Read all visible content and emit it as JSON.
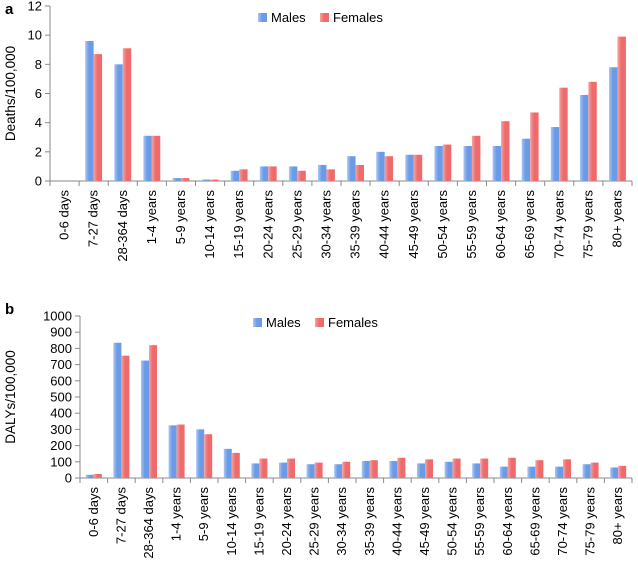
{
  "colors": {
    "males": "#6b9be6",
    "females": "#ef6b6b",
    "axis": "#8a8a8a"
  },
  "chart_data": [
    {
      "type": "bar",
      "panel_label": "a",
      "ylabel": "Deaths/100,000",
      "ylim": [
        0,
        12
      ],
      "yticks": [
        0,
        2,
        4,
        6,
        8,
        10,
        12
      ],
      "legend_position": "top-center",
      "categories": [
        "0-6 days",
        "7-27 days",
        "28-364 days",
        "1-4 years",
        "5-9 years",
        "10-14 years",
        "15-19 years",
        "20-24 years",
        "25-29 years",
        "30-34 years",
        "35-39 years",
        "40-44 years",
        "45-49 years",
        "50-54 years",
        "55-59 years",
        "60-64 years",
        "65-69 years",
        "70-74 years",
        "75-79 years",
        "80+ years"
      ],
      "series": [
        {
          "name": "Males",
          "values": [
            0,
            9.6,
            8.0,
            3.1,
            0.2,
            0.1,
            0.7,
            1.0,
            1.0,
            1.1,
            1.7,
            2.0,
            1.8,
            2.4,
            2.4,
            2.4,
            2.9,
            3.7,
            5.9,
            7.8
          ]
        },
        {
          "name": "Females",
          "values": [
            0,
            8.7,
            9.1,
            3.1,
            0.2,
            0.1,
            0.8,
            1.0,
            0.7,
            0.8,
            1.1,
            1.7,
            1.8,
            2.5,
            3.1,
            4.1,
            4.7,
            6.4,
            6.8,
            9.9
          ]
        }
      ]
    },
    {
      "type": "bar",
      "panel_label": "b",
      "ylabel": "DALYs/100,000",
      "ylim": [
        0,
        1000
      ],
      "yticks": [
        0,
        100,
        200,
        300,
        400,
        500,
        600,
        700,
        800,
        900,
        1000
      ],
      "legend_position": "top-center",
      "categories": [
        "0-6 days",
        "7-27 days",
        "28-364 days",
        "1-4 years",
        "5-9 years",
        "10-14 years",
        "15-19 years",
        "20-24 years",
        "25-29 years",
        "30-34 years",
        "35-39 years",
        "40-44 years",
        "45-49 years",
        "50-54 years",
        "55-59 years",
        "60-64 years",
        "65-69 years",
        "70-74 years",
        "75-79 years",
        "80+ years"
      ],
      "series": [
        {
          "name": "Males",
          "values": [
            20,
            835,
            725,
            325,
            300,
            180,
            90,
            95,
            85,
            85,
            105,
            105,
            90,
            100,
            90,
            70,
            70,
            70,
            85,
            65
          ]
        },
        {
          "name": "Females",
          "values": [
            25,
            755,
            820,
            330,
            270,
            155,
            120,
            120,
            95,
            100,
            110,
            125,
            115,
            120,
            120,
            125,
            110,
            115,
            95,
            75
          ]
        }
      ]
    }
  ]
}
